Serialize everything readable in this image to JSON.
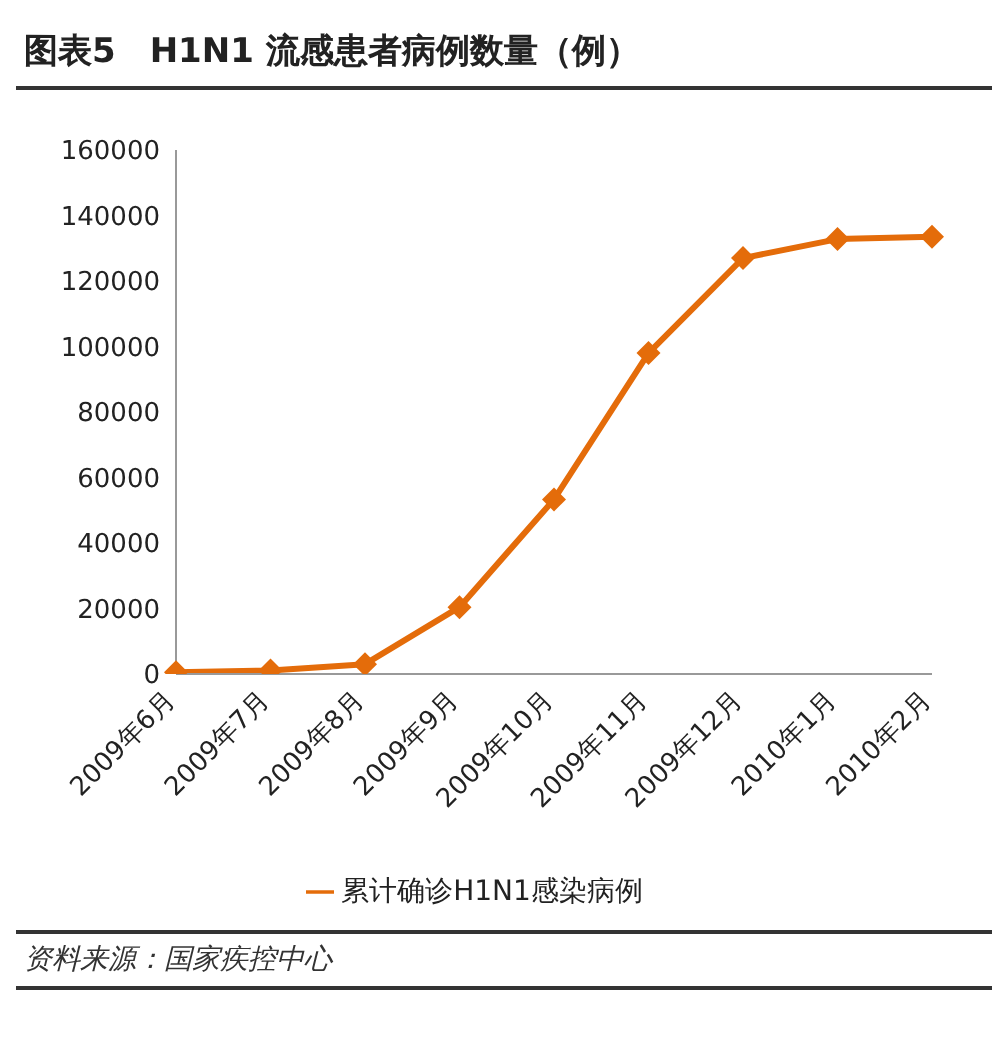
{
  "chart_data": {
    "type": "line",
    "title": "图表5　H1N1 流感患者病例数量（例）",
    "categories": [
      "2009年6月",
      "2009年7月",
      "2009年8月",
      "2009年9月",
      "2009年10月",
      "2009年11月",
      "2009年12月",
      "2010年1月",
      "2010年2月"
    ],
    "series": [
      {
        "name": "累计确诊H1N1感染病例",
        "color": "#e46c0a",
        "values": [
          500,
          1100,
          3000,
          20400,
          53300,
          98000,
          127000,
          132800,
          133500
        ]
      }
    ],
    "ylim": [
      0,
      160000
    ],
    "yticks": [
      0,
      20000,
      40000,
      60000,
      80000,
      100000,
      120000,
      140000,
      160000
    ],
    "grid": false,
    "legend": "bottom",
    "marker": "diamond",
    "line_style": "solid",
    "annotations": [
      "资料来源：国家疾控中心"
    ]
  }
}
